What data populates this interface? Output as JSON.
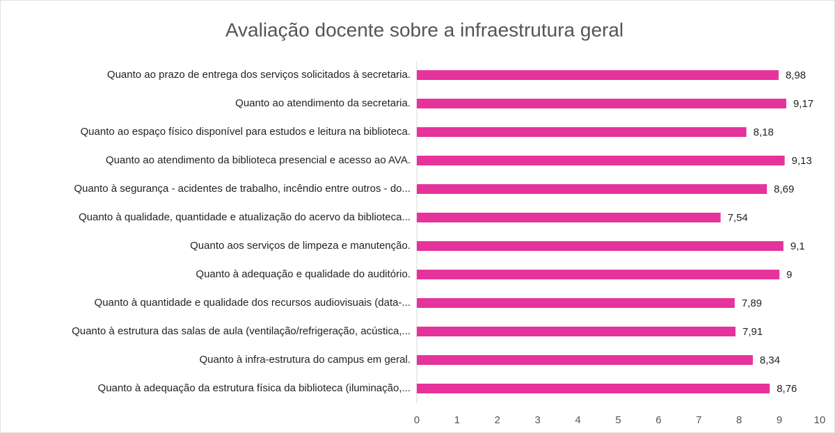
{
  "chart_data": {
    "type": "barh",
    "title": "Avaliação docente sobre a infraestrutura geral",
    "categories": [
      "Quanto ao prazo de entrega dos serviços solicitados à secretaria.",
      "Quanto ao atendimento da secretaria.",
      "Quanto ao espaço físico disponível para estudos e leitura na biblioteca.",
      "Quanto ao atendimento da biblioteca presencial e acesso ao AVA.",
      "Quanto à segurança - acidentes de trabalho, incêndio entre outros - do...",
      "Quanto à qualidade, quantidade e atualização do acervo da biblioteca...",
      "Quanto aos serviços de limpeza e manutenção.",
      "Quanto à adequação e qualidade do auditório.",
      "Quanto à quantidade e qualidade dos recursos audiovisuais (data-...",
      "Quanto à estrutura das salas de aula (ventilação/refrigeração, acústica,...",
      "Quanto à infra-estrutura do campus em geral.",
      "Quanto à adequação da estrutura física da biblioteca (iluminação,..."
    ],
    "values": [
      8.98,
      9.17,
      8.18,
      9.13,
      8.69,
      7.54,
      9.1,
      9,
      7.89,
      7.91,
      8.34,
      8.76
    ],
    "value_labels": [
      "8,98",
      "9,17",
      "8,18",
      "9,13",
      "8,69",
      "7,54",
      "9,1",
      "9",
      "7,89",
      "7,91",
      "8,34",
      "8,76"
    ],
    "color": "#e5339b",
    "xlim": [
      0,
      10
    ],
    "xticks": [
      0,
      1,
      2,
      3,
      4,
      5,
      6,
      7,
      8,
      9,
      10
    ],
    "grid": false
  }
}
